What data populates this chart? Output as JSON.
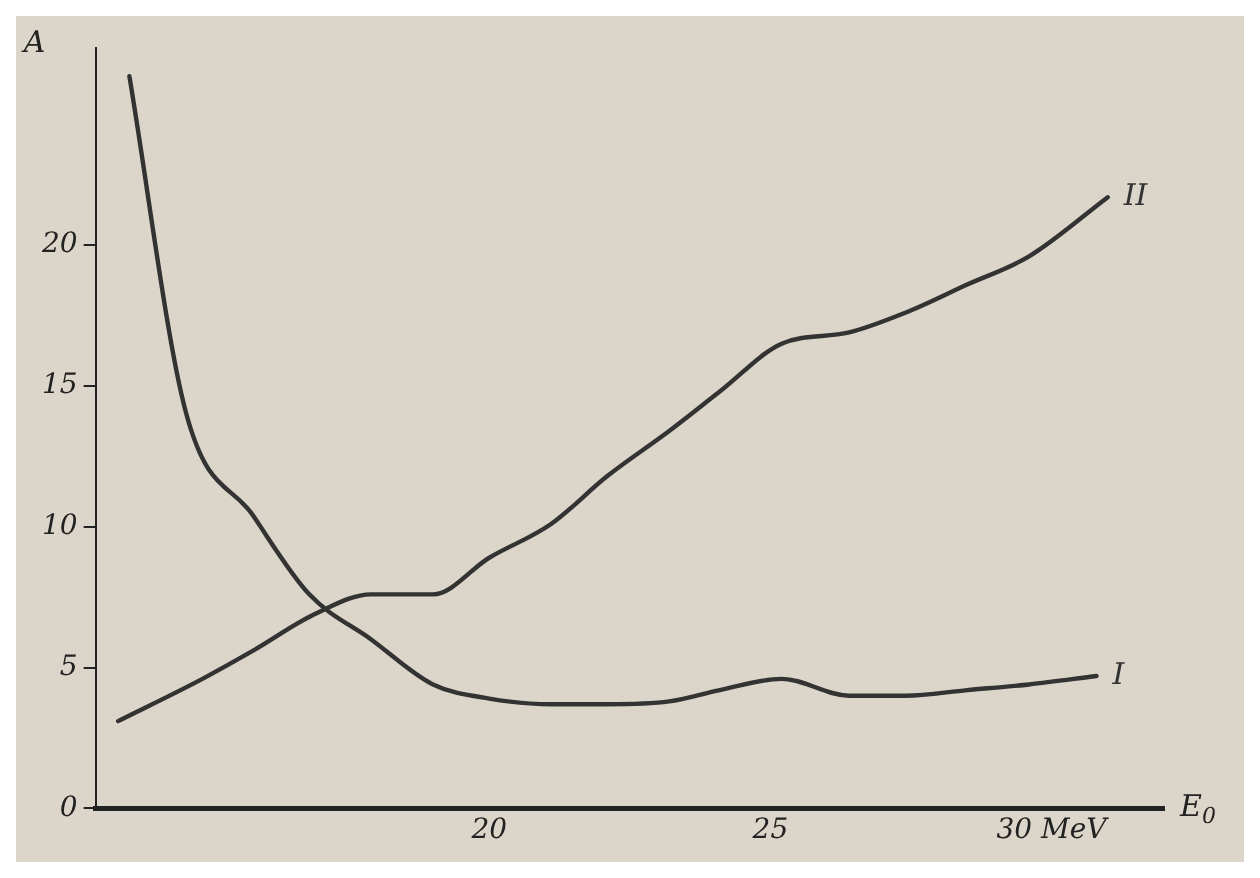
{
  "chart_data": {
    "type": "line",
    "xlabel": "E$_{0}$",
    "ylabel": "A",
    "xlim": [
      13,
      32
    ],
    "xticks": [
      20,
      25,
      {
        "value": 30,
        "label": "30 MeV"
      }
    ],
    "ylim": [
      0,
      27
    ],
    "yticks": [
      0,
      5,
      10,
      15,
      20
    ],
    "grid": false,
    "legend": false,
    "marker": "none",
    "line_style": "solid",
    "series": [
      {
        "name": "I",
        "color": "#333333",
        "x": [
          13.6,
          14.6,
          15.8,
          16.8,
          17.9,
          19.0,
          20.0,
          21.1,
          22.1,
          23.2,
          24.1,
          25.2,
          26.4,
          27.4,
          28.5,
          29.6,
          30.8
        ],
        "values": [
          26.0,
          14.1,
          10.4,
          7.6,
          6.0,
          4.4,
          3.9,
          3.7,
          3.7,
          3.8,
          4.2,
          4.6,
          4.0,
          4.0,
          4.2,
          4.4,
          4.7
        ]
      },
      {
        "name": "II",
        "color": "#333333",
        "x": [
          13.4,
          14.9,
          15.8,
          16.9,
          17.9,
          19.0,
          20.0,
          21.1,
          22.1,
          23.2,
          24.1,
          25.2,
          26.4,
          27.4,
          28.5,
          29.6,
          31.0
        ],
        "values": [
          3.1,
          4.6,
          5.6,
          6.9,
          7.6,
          7.6,
          8.9,
          10.1,
          11.8,
          13.4,
          14.8,
          16.5,
          16.9,
          17.6,
          18.6,
          19.6,
          21.7
        ]
      }
    ]
  }
}
